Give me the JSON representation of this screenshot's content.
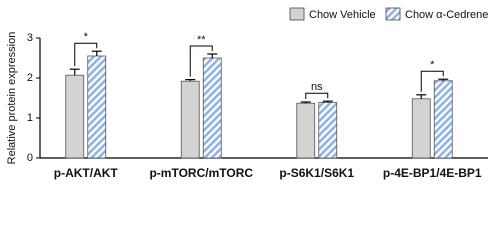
{
  "chart_data": {
    "type": "bar",
    "y_label": "Relative protein expression",
    "categories": [
      "p-AKT/AKT",
      "p-mTORC/mTORC",
      "p-S6K1/S6K1",
      "p-4E-BP1/4E-BP1"
    ],
    "series": [
      {
        "name": "Chow Vehicle",
        "color": "#d3d3d3",
        "values": [
          2.07,
          1.92,
          1.37,
          1.48
        ],
        "errors": [
          0.15,
          0.04,
          0.03,
          0.1
        ]
      },
      {
        "name": "Chow α-Cedrene",
        "color": "#8fb4e3",
        "values": [
          2.55,
          2.5,
          1.39,
          1.93
        ],
        "errors": [
          0.12,
          0.1,
          0.03,
          0.04
        ]
      }
    ],
    "annotations": [
      "*",
      "**",
      "ns",
      "*"
    ],
    "ylim": [
      0,
      3
    ],
    "yticks": [
      0,
      1,
      2,
      3
    ],
    "grid": false,
    "legend": "top"
  }
}
